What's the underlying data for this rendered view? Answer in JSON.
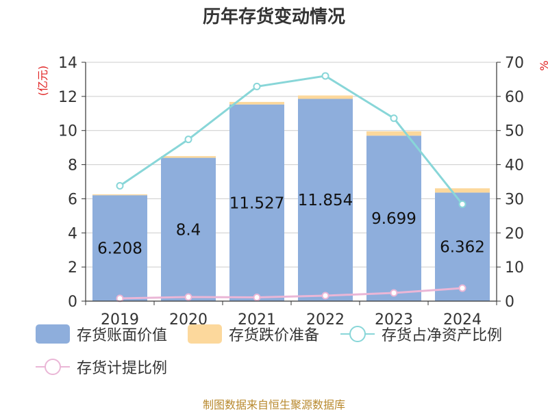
{
  "page": {
    "footer": "制图数据来自恒生聚源数据库"
  },
  "chart_data": {
    "type": "bar",
    "title": "历年存货变动情况",
    "ylabel": "(亿元)",
    "y2label": "%",
    "categories": [
      "2019",
      "2020",
      "2021",
      "2022",
      "2023",
      "2024"
    ],
    "ylim": [
      0,
      14
    ],
    "y2lim": [
      0,
      70
    ],
    "yticks": [
      0,
      2,
      4,
      6,
      8,
      10,
      12,
      14
    ],
    "y2ticks": [
      0,
      10,
      20,
      30,
      40,
      50,
      60,
      70
    ],
    "grid": true,
    "legend_position": "bottom",
    "series": [
      {
        "name": "存货账面价值",
        "type": "bar",
        "stack": "a",
        "axis": "left",
        "color": "#8eaedc",
        "values": [
          6.208,
          8.4,
          11.527,
          11.854,
          9.699,
          6.362
        ],
        "labels": [
          "6.208",
          "8.4",
          "11.527",
          "11.854",
          "9.699",
          "6.362"
        ]
      },
      {
        "name": "存货跌价准备",
        "type": "bar",
        "stack": "a",
        "axis": "left",
        "color": "#fcd89c",
        "values": [
          0.05,
          0.1,
          0.15,
          0.2,
          0.25,
          0.25
        ]
      },
      {
        "name": "存货占净资产比例",
        "type": "line",
        "axis": "right",
        "color": "#88d6d8",
        "values": [
          33.8,
          47.4,
          62.9,
          66.0,
          53.6,
          28.4
        ]
      },
      {
        "name": "存货计提比例",
        "type": "line",
        "axis": "right",
        "color": "#eab6d6",
        "values": [
          0.8,
          1.2,
          1.1,
          1.6,
          2.4,
          3.8
        ]
      }
    ]
  }
}
